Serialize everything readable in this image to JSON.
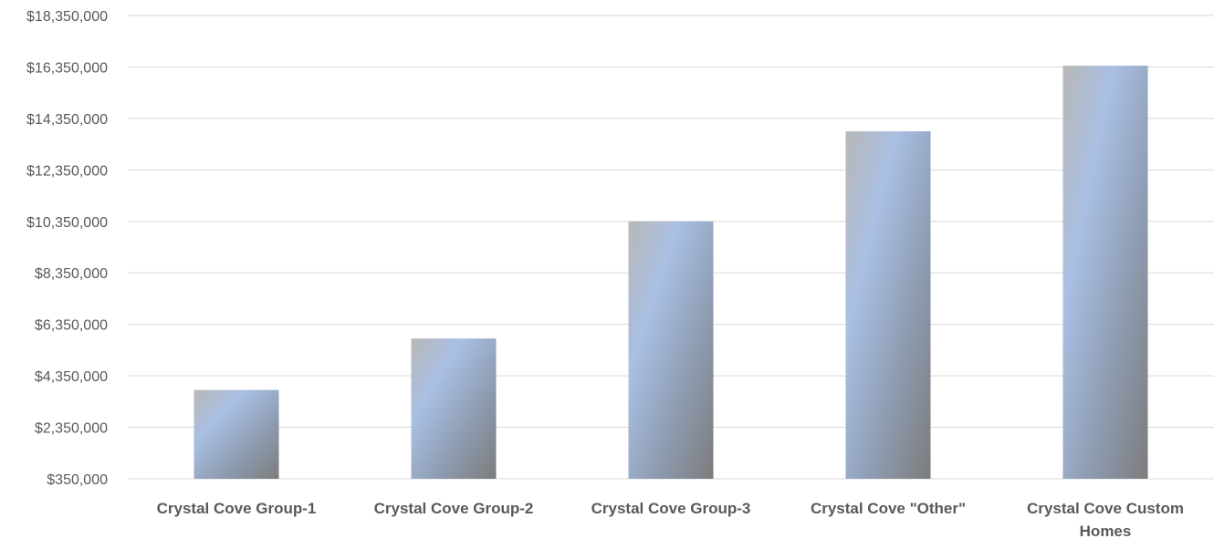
{
  "chart_data": {
    "type": "bar",
    "categories": [
      "Crystal Cove Group-1",
      "Crystal Cove Group-2",
      "Crystal Cove Group-3",
      "Crystal Cove \"Other\"",
      "Crystal Cove Custom Homes"
    ],
    "values": [
      3800000,
      5800000,
      10350000,
      13850000,
      16400000
    ],
    "ylim": [
      350000,
      18350000
    ],
    "yticks": [
      350000,
      2350000,
      4350000,
      6350000,
      8350000,
      10350000,
      12350000,
      14350000,
      16350000,
      18350000
    ],
    "ytick_labels": [
      "$350,000",
      "$2,350,000",
      "$4,350,000",
      "$6,350,000",
      "$8,350,000",
      "$10,350,000",
      "$12,350,000",
      "$14,350,000",
      "$16,350,000",
      "$18,350,000"
    ],
    "title": "",
    "xlabel": "",
    "ylabel": "",
    "grid": true,
    "legend": "none"
  },
  "colors": {
    "grid": "#d9d9d9",
    "label_text": "#595959",
    "bar_gradient": [
      "#b8b8b8",
      "#a9bfe3",
      "#8e9cb1",
      "#7c7c7c"
    ]
  }
}
